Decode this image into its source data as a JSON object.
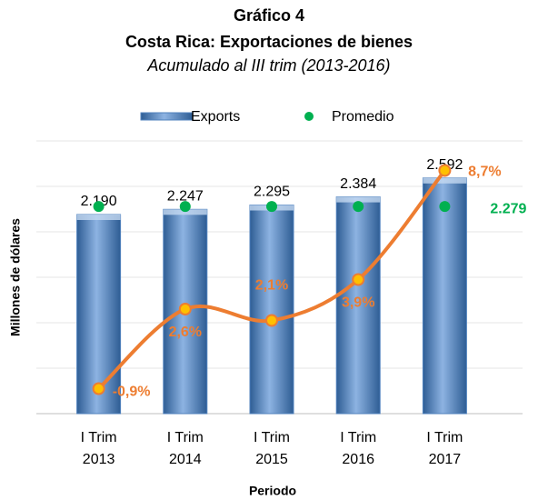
{
  "chart_data": {
    "type": "bar",
    "title": "Gráfico 4",
    "subtitle": "Costa Rica: Exportaciones de bienes",
    "subtitle2": "Acumulado al III  trim (2013-2016)",
    "y_label": "Millones de dólares",
    "x_label": "Periodo",
    "categories": [
      [
        "I Trim",
        "2013"
      ],
      [
        "I Trim",
        "2014"
      ],
      [
        "I Trim",
        "2015"
      ],
      [
        "I Trim",
        "2016"
      ],
      [
        "I Trim",
        "2017"
      ]
    ],
    "ylim": [
      0,
      3000
    ],
    "yticks": [
      0,
      500,
      1000,
      1500,
      2000,
      2500,
      3000
    ],
    "y2lim": [
      -2,
      10
    ],
    "grid": true,
    "legend": "top",
    "series": [
      {
        "name": "Exports",
        "type": "bar",
        "color": "#4f81bd",
        "values": [
          2190,
          2247,
          2295,
          2384,
          2592
        ],
        "value_labels": [
          "2.190",
          "2.247",
          "2.295",
          "2.384",
          "2.592"
        ]
      },
      {
        "name": "Promedio",
        "type": "scatter",
        "color": "#00b050",
        "values": [
          2279,
          2279,
          2279,
          2279,
          2279
        ],
        "value_labels": [
          null,
          null,
          null,
          null,
          "2.279"
        ]
      },
      {
        "type": "line",
        "axis": "y2",
        "color": "#ed7d31",
        "values": [
          -0.9,
          2.6,
          2.1,
          3.9,
          8.7
        ],
        "value_labels": [
          "-0,9%",
          "2,6%",
          "2,1%",
          "3,9%",
          "8,7%"
        ]
      }
    ]
  }
}
